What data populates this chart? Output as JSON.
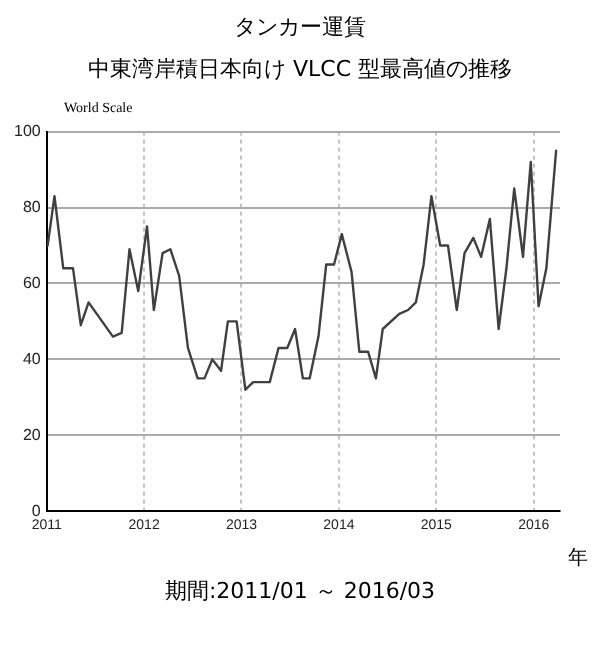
{
  "chart_data": {
    "type": "line",
    "title": "タンカー運賃",
    "subtitle": "中東湾岸積日本向け VLCC 型最高値の推移",
    "ylabel": "World Scale",
    "xlabel": "年",
    "annotations": [
      "期間:2011/01 ～ 2016/03"
    ],
    "x": [
      2011.01,
      2011.08,
      2011.17,
      2011.27,
      2011.35,
      2011.43,
      2011.68,
      2011.77,
      2011.85,
      2011.94,
      2012.03,
      2012.1,
      2012.19,
      2012.27,
      2012.36,
      2012.45,
      2012.55,
      2012.62,
      2012.7,
      2012.79,
      2012.86,
      2012.95,
      2013.04,
      2013.12,
      2013.29,
      2013.38,
      2013.47,
      2013.55,
      2013.63,
      2013.7,
      2013.79,
      2013.87,
      2013.95,
      2014.03,
      2014.13,
      2014.21,
      2014.3,
      2014.38,
      2014.45,
      2014.62,
      2014.71,
      2014.79,
      2014.87,
      2014.95,
      2015.04,
      2015.12,
      2015.21,
      2015.29,
      2015.38,
      2015.46,
      2015.55,
      2015.64,
      2015.72,
      2015.8,
      2015.89,
      2015.97,
      2016.05,
      2016.13,
      2016.23
    ],
    "series": [
      {
        "color": "#404040",
        "values": [
          70,
          83,
          64,
          64,
          49,
          55,
          46,
          47,
          69,
          58,
          75,
          53,
          68,
          69,
          62,
          43,
          35,
          35,
          40,
          37,
          50,
          50,
          32,
          34,
          34,
          43,
          43,
          48,
          35,
          35,
          46,
          65,
          65,
          73,
          63,
          42,
          42,
          35,
          48,
          52,
          53,
          55,
          65,
          83,
          70,
          70,
          53,
          68,
          72,
          67,
          77,
          48,
          64,
          85,
          67,
          92,
          54,
          64,
          95
        ]
      }
    ],
    "xlim": [
      2011,
      2016.27
    ],
    "xticks": [
      2011,
      2012,
      2013,
      2014,
      2015,
      2016
    ],
    "ylim": [
      0,
      100
    ],
    "yticks": [
      0,
      20,
      40,
      60,
      80,
      100
    ],
    "grid": true,
    "legend": false,
    "marker": "none",
    "line_style": "solid"
  }
}
